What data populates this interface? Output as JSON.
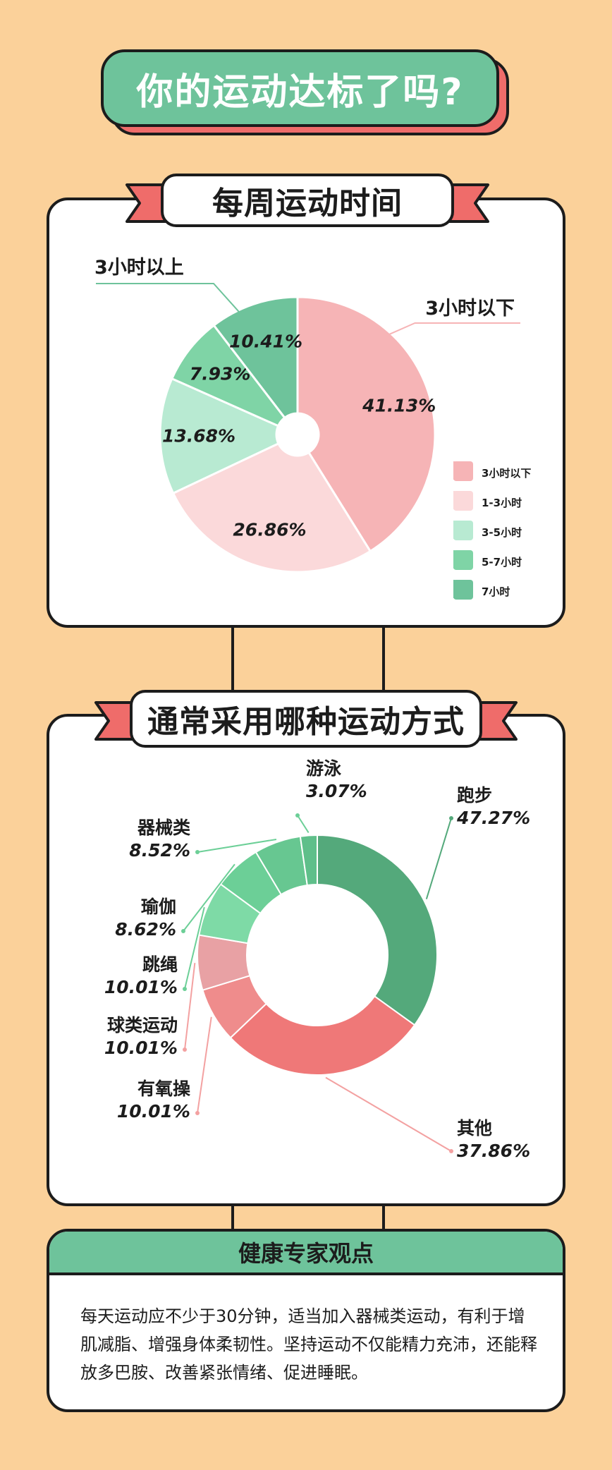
{
  "title": "你的运动达标了吗?",
  "section1": {
    "title": "每周运动时间"
  },
  "section2": {
    "title": "通常采用哪种运动方式"
  },
  "expert": {
    "title": "健康专家观点",
    "body": "每天运动应不少于30分钟，适当加入器械类运动，有利于增肌减脂、增强身体柔韧性。坚持运动不仅能精力充沛，还能释放多巴胺、改善紧张情绪、促进睡眠。"
  },
  "colors": {
    "background": "#fbd19a",
    "title_green": "#6ec39b",
    "accent_red": "#ef6c6a",
    "outline": "#1c1c1c"
  },
  "chart_data": [
    {
      "type": "pie",
      "title": "每周运动时间",
      "categories": [
        "3小时以下",
        "1-3小时",
        "3-5小时",
        "5-7小时",
        "7小时"
      ],
      "values": [
        41.13,
        26.86,
        13.68,
        7.93,
        10.41
      ],
      "value_labels": [
        "41.13%",
        "26.86%",
        "13.68%",
        "7.93%",
        "10.41%"
      ],
      "colors": [
        "#f6b4b6",
        "#fbd9da",
        "#b8ead2",
        "#7fd4a6",
        "#6ec39b"
      ],
      "annotations": [
        "3小时以上",
        "3小时以下"
      ],
      "legend": "right"
    },
    {
      "type": "pie",
      "title": "通常采用哪种运动方式",
      "categories": [
        "跑步",
        "其他",
        "有氧操",
        "球类运动",
        "跳绳",
        "瑜伽",
        "器械类",
        "游泳"
      ],
      "values": [
        47.27,
        37.86,
        10.01,
        10.01,
        10.01,
        8.62,
        8.52,
        3.07
      ],
      "value_labels": [
        "47.27%",
        "37.86%",
        "10.01%",
        "10.01%",
        "10.01%",
        "8.62%",
        "8.52%",
        "3.07%"
      ],
      "colors": [
        "#54a97b",
        "#ef7878",
        "#ef8c8c",
        "#e8a1a4",
        "#7edaa6",
        "#6ccf97",
        "#67c791",
        "#5fbf8a"
      ],
      "legend": "none"
    }
  ]
}
